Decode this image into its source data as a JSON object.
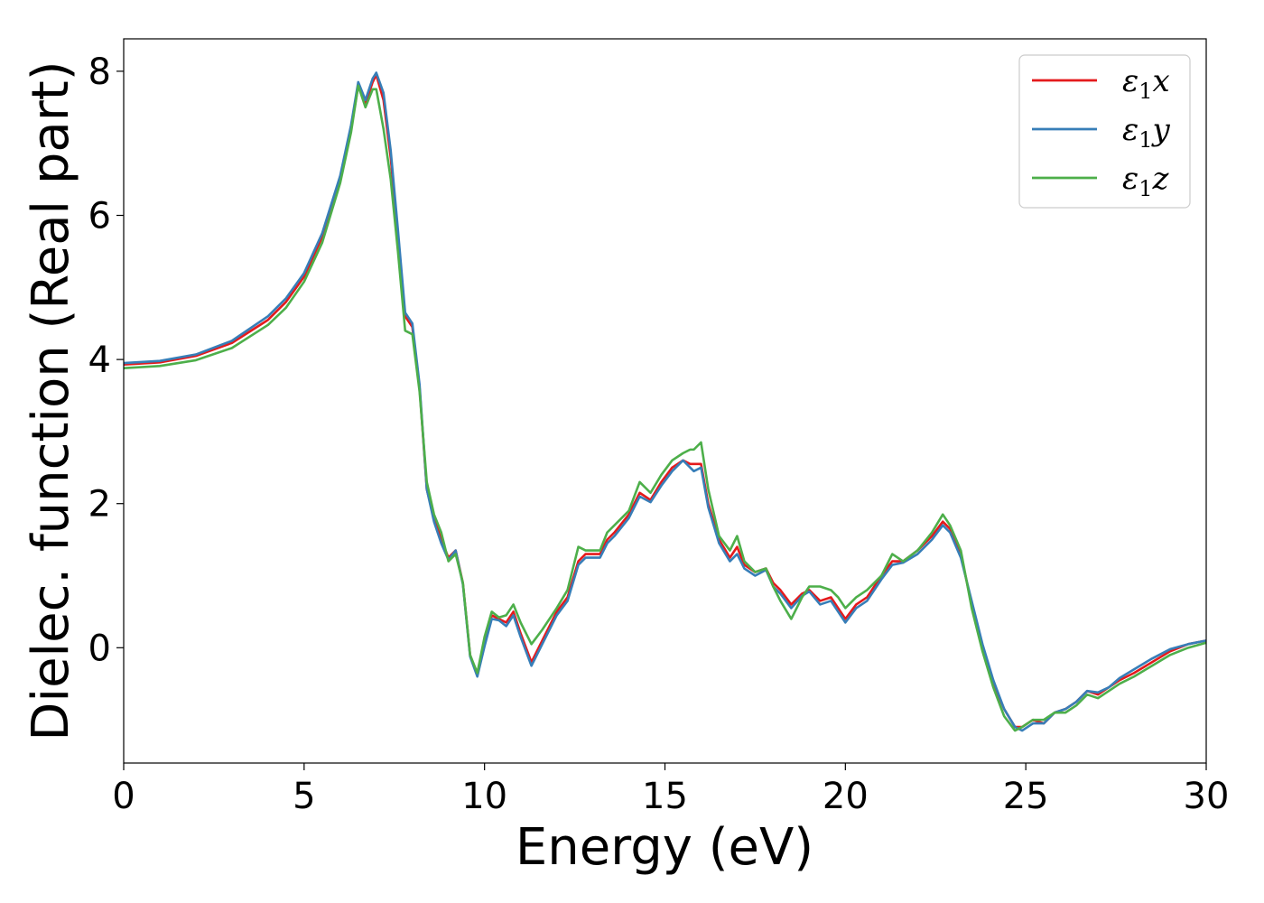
{
  "chart_data": {
    "type": "line",
    "title": "",
    "xlabel": "Energy (eV)",
    "ylabel": "Dielec. function (Real part)",
    "xlim": [
      0,
      30
    ],
    "ylim": [
      -1.6,
      8.45
    ],
    "xticks": [
      0,
      5,
      10,
      15,
      20,
      25,
      30
    ],
    "yticks": [
      0,
      2,
      4,
      6,
      8
    ],
    "grid": false,
    "legend_position": "top-right",
    "series": [
      {
        "name": "ε₁x",
        "legend_base": "ε",
        "legend_sub": "1",
        "legend_var": "x",
        "color": "#e41a1c",
        "x": [
          0,
          1,
          2,
          3,
          4,
          4.5,
          5,
          5.5,
          6,
          6.3,
          6.5,
          6.7,
          6.9,
          7.0,
          7.2,
          7.4,
          7.6,
          7.8,
          8.0,
          8.2,
          8.4,
          8.6,
          8.8,
          9.0,
          9.2,
          9.4,
          9.6,
          9.8,
          10.0,
          10.2,
          10.4,
          10.6,
          10.8,
          11.0,
          11.3,
          11.6,
          12.0,
          12.3,
          12.6,
          12.8,
          13.0,
          13.2,
          13.4,
          13.6,
          14.0,
          14.3,
          14.6,
          14.9,
          15.2,
          15.5,
          15.7,
          15.8,
          16.0,
          16.2,
          16.5,
          16.8,
          17.0,
          17.2,
          17.5,
          17.8,
          18.0,
          18.2,
          18.5,
          18.8,
          19.0,
          19.3,
          19.6,
          19.8,
          20.0,
          20.3,
          20.6,
          21.0,
          21.3,
          21.6,
          22.0,
          22.4,
          22.7,
          22.9,
          23.2,
          23.5,
          23.8,
          24.1,
          24.4,
          24.7,
          24.9,
          25.2,
          25.5,
          25.8,
          26.1,
          26.4,
          26.7,
          27.0,
          27.3,
          27.6,
          28.0,
          28.5,
          29.0,
          29.5,
          30.0
        ],
        "y": [
          3.93,
          3.96,
          4.05,
          4.23,
          4.55,
          4.8,
          5.15,
          5.7,
          6.5,
          7.2,
          7.8,
          7.55,
          7.85,
          7.95,
          7.6,
          6.8,
          5.7,
          4.6,
          4.45,
          3.6,
          2.2,
          1.8,
          1.5,
          1.25,
          1.35,
          0.9,
          -0.1,
          -0.38,
          0.05,
          0.45,
          0.4,
          0.35,
          0.5,
          0.2,
          -0.2,
          0.1,
          0.5,
          0.7,
          1.2,
          1.3,
          1.3,
          1.3,
          1.5,
          1.6,
          1.85,
          2.15,
          2.05,
          2.3,
          2.5,
          2.6,
          2.55,
          2.55,
          2.55,
          2.0,
          1.5,
          1.25,
          1.4,
          1.15,
          1.05,
          1.1,
          0.9,
          0.8,
          0.6,
          0.75,
          0.8,
          0.65,
          0.7,
          0.55,
          0.4,
          0.6,
          0.7,
          1.0,
          1.2,
          1.2,
          1.35,
          1.55,
          1.75,
          1.65,
          1.3,
          0.6,
          0.0,
          -0.5,
          -0.85,
          -1.1,
          -1.1,
          -1.0,
          -1.05,
          -0.9,
          -0.85,
          -0.75,
          -0.6,
          -0.65,
          -0.55,
          -0.45,
          -0.35,
          -0.2,
          -0.05,
          0.05,
          0.1
        ]
      },
      {
        "name": "ε₁y",
        "legend_base": "ε",
        "legend_sub": "1",
        "legend_var": "y",
        "color": "#377eb8",
        "x": [
          0,
          1,
          2,
          3,
          4,
          4.5,
          5,
          5.5,
          6,
          6.3,
          6.5,
          6.7,
          6.9,
          7.0,
          7.2,
          7.4,
          7.6,
          7.8,
          8.0,
          8.2,
          8.4,
          8.6,
          8.8,
          9.0,
          9.2,
          9.4,
          9.6,
          9.8,
          10.0,
          10.2,
          10.4,
          10.6,
          10.8,
          11.0,
          11.3,
          11.6,
          12.0,
          12.3,
          12.6,
          12.8,
          13.0,
          13.2,
          13.4,
          13.6,
          14.0,
          14.3,
          14.6,
          14.9,
          15.2,
          15.5,
          15.7,
          15.8,
          16.0,
          16.2,
          16.5,
          16.8,
          17.0,
          17.2,
          17.5,
          17.8,
          18.0,
          18.2,
          18.5,
          18.8,
          19.0,
          19.3,
          19.6,
          19.8,
          20.0,
          20.3,
          20.6,
          21.0,
          21.3,
          21.6,
          22.0,
          22.4,
          22.7,
          22.9,
          23.2,
          23.5,
          23.8,
          24.1,
          24.4,
          24.7,
          24.9,
          25.2,
          25.5,
          25.8,
          26.1,
          26.4,
          26.7,
          27.0,
          27.3,
          27.6,
          28.0,
          28.5,
          29.0,
          29.5,
          30.0
        ],
        "y": [
          3.95,
          3.98,
          4.07,
          4.26,
          4.6,
          4.85,
          5.2,
          5.75,
          6.55,
          7.25,
          7.85,
          7.6,
          7.9,
          7.98,
          7.7,
          6.9,
          5.8,
          4.65,
          4.5,
          3.65,
          2.2,
          1.75,
          1.45,
          1.22,
          1.35,
          0.88,
          -0.12,
          -0.4,
          0.02,
          0.4,
          0.38,
          0.3,
          0.45,
          0.15,
          -0.25,
          0.05,
          0.45,
          0.65,
          1.15,
          1.25,
          1.25,
          1.25,
          1.45,
          1.55,
          1.8,
          2.1,
          2.02,
          2.25,
          2.45,
          2.6,
          2.5,
          2.45,
          2.5,
          1.95,
          1.45,
          1.2,
          1.3,
          1.1,
          1.0,
          1.08,
          0.85,
          0.75,
          0.55,
          0.72,
          0.78,
          0.6,
          0.65,
          0.5,
          0.35,
          0.55,
          0.65,
          0.95,
          1.15,
          1.18,
          1.3,
          1.5,
          1.7,
          1.6,
          1.25,
          0.65,
          0.05,
          -0.45,
          -0.85,
          -1.1,
          -1.15,
          -1.05,
          -1.05,
          -0.9,
          -0.85,
          -0.75,
          -0.6,
          -0.62,
          -0.55,
          -0.42,
          -0.3,
          -0.15,
          -0.02,
          0.05,
          0.1
        ]
      },
      {
        "name": "ε₁z",
        "legend_base": "ε",
        "legend_sub": "1",
        "legend_var": "z",
        "color": "#4daf4a",
        "x": [
          0,
          1,
          2,
          3,
          4,
          4.5,
          5,
          5.5,
          6,
          6.3,
          6.5,
          6.7,
          6.9,
          7.0,
          7.2,
          7.4,
          7.6,
          7.8,
          8.0,
          8.2,
          8.4,
          8.6,
          8.8,
          9.0,
          9.2,
          9.4,
          9.6,
          9.8,
          10.0,
          10.2,
          10.4,
          10.6,
          10.8,
          11.0,
          11.3,
          11.6,
          12.0,
          12.3,
          12.6,
          12.8,
          13.0,
          13.2,
          13.4,
          13.6,
          14.0,
          14.3,
          14.6,
          14.9,
          15.2,
          15.5,
          15.7,
          15.8,
          16.0,
          16.2,
          16.5,
          16.8,
          17.0,
          17.2,
          17.5,
          17.8,
          18.0,
          18.2,
          18.5,
          18.8,
          19.0,
          19.3,
          19.6,
          19.8,
          20.0,
          20.3,
          20.6,
          21.0,
          21.3,
          21.6,
          22.0,
          22.4,
          22.7,
          22.9,
          23.2,
          23.5,
          23.8,
          24.1,
          24.4,
          24.7,
          24.9,
          25.2,
          25.5,
          25.8,
          26.1,
          26.4,
          26.7,
          27.0,
          27.3,
          27.6,
          28.0,
          28.5,
          29.0,
          29.5,
          30.0
        ],
        "y": [
          3.88,
          3.91,
          3.99,
          4.16,
          4.48,
          4.72,
          5.08,
          5.62,
          6.45,
          7.15,
          7.8,
          7.5,
          7.75,
          7.75,
          7.2,
          6.5,
          5.5,
          4.4,
          4.35,
          3.55,
          2.3,
          1.85,
          1.6,
          1.2,
          1.3,
          0.9,
          -0.1,
          -0.35,
          0.15,
          0.5,
          0.42,
          0.45,
          0.6,
          0.35,
          0.05,
          0.25,
          0.55,
          0.8,
          1.4,
          1.35,
          1.35,
          1.35,
          1.6,
          1.7,
          1.9,
          2.3,
          2.15,
          2.4,
          2.6,
          2.7,
          2.75,
          2.75,
          2.85,
          2.2,
          1.55,
          1.35,
          1.55,
          1.2,
          1.05,
          1.1,
          0.85,
          0.65,
          0.4,
          0.7,
          0.85,
          0.85,
          0.8,
          0.7,
          0.55,
          0.7,
          0.8,
          1.0,
          1.3,
          1.2,
          1.35,
          1.6,
          1.85,
          1.7,
          1.35,
          0.55,
          -0.05,
          -0.55,
          -0.95,
          -1.15,
          -1.1,
          -1.0,
          -1.0,
          -0.9,
          -0.9,
          -0.8,
          -0.65,
          -0.7,
          -0.6,
          -0.5,
          -0.4,
          -0.25,
          -0.1,
          0.0,
          0.07
        ]
      }
    ]
  }
}
